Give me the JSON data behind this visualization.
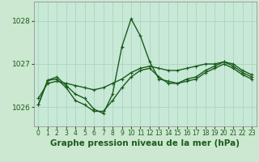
{
  "background_color": "#cce8d0",
  "plot_bg_color": "#c8e8d8",
  "grid_color": "#b0d8c0",
  "line_color": "#1a5c1a",
  "xlabel": "Graphe pression niveau de la mer (hPa)",
  "xlabel_fontsize": 7.5,
  "ylim": [
    1025.55,
    1028.45
  ],
  "xlim": [
    -0.5,
    23.5
  ],
  "yticks": [
    1026,
    1027,
    1028
  ],
  "xticks": [
    0,
    1,
    2,
    3,
    4,
    5,
    6,
    7,
    8,
    9,
    10,
    11,
    12,
    13,
    14,
    15,
    16,
    17,
    18,
    19,
    20,
    21,
    22,
    23
  ],
  "series": [
    {
      "x": [
        0,
        1,
        2,
        3,
        4,
        5,
        6,
        7,
        8,
        9,
        10,
        11,
        12,
        13,
        14,
        15,
        16,
        17,
        18,
        19,
        20,
        21,
        22,
        23
      ],
      "y": [
        1026.05,
        1026.62,
        1026.7,
        1026.5,
        1026.3,
        1026.2,
        1025.95,
        1025.85,
        1026.3,
        1027.4,
        1028.05,
        1027.65,
        1027.05,
        1026.65,
        1026.6,
        1026.55,
        1026.65,
        1026.7,
        1026.85,
        1026.95,
        1027.05,
        1026.95,
        1026.8,
        1026.7
      ],
      "linewidth": 1.0
    },
    {
      "x": [
        0,
        1,
        2,
        3,
        4,
        5,
        6,
        7,
        8,
        9,
        10,
        11,
        12,
        13,
        14,
        15,
        16,
        17,
        18,
        19,
        20,
        21,
        22,
        23
      ],
      "y": [
        1026.2,
        1026.55,
        1026.6,
        1026.55,
        1026.5,
        1026.45,
        1026.4,
        1026.45,
        1026.55,
        1026.65,
        1026.8,
        1026.9,
        1026.95,
        1026.9,
        1026.85,
        1026.85,
        1026.9,
        1026.95,
        1027.0,
        1027.0,
        1027.05,
        1027.0,
        1026.85,
        1026.75
      ],
      "linewidth": 1.0
    },
    {
      "x": [
        0,
        1,
        2,
        3,
        4,
        5,
        6,
        7,
        8,
        9,
        10,
        11,
        12,
        13,
        14,
        15,
        16,
        17,
        18,
        19,
        20,
        21,
        22,
        23
      ],
      "y": [
        1026.05,
        1026.62,
        1026.65,
        1026.45,
        1026.15,
        1026.05,
        1025.9,
        1025.9,
        1026.15,
        1026.45,
        1026.7,
        1026.85,
        1026.9,
        1026.7,
        1026.55,
        1026.55,
        1026.6,
        1026.65,
        1026.8,
        1026.9,
        1027.0,
        1026.9,
        1026.75,
        1026.65
      ],
      "linewidth": 1.0
    }
  ]
}
